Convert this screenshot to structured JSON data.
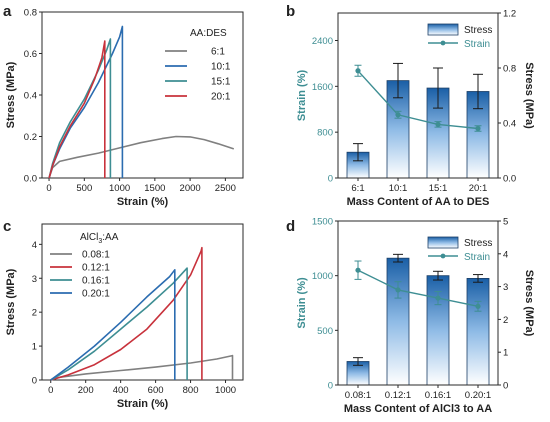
{
  "figure": {
    "panels": [
      {
        "id": "a",
        "letter": "a",
        "chart_data": {
          "type": "line",
          "xlabel": "Strain (%)",
          "ylabel": "Stress (MPa)",
          "xlim": [
            -100,
            2750
          ],
          "ylim": [
            0,
            0.8
          ],
          "xticks": [
            0,
            500,
            1000,
            1500,
            2000,
            2500
          ],
          "yticks": [
            0.0,
            0.2,
            0.4,
            0.6,
            0.8
          ],
          "legend": {
            "title": "AA:DES",
            "position": "right"
          },
          "series": [
            {
              "name": "6:1",
              "color": "#808080",
              "points": [
                [
                  0,
                  0
                ],
                [
                  50,
                  0.05
                ],
                [
                  150,
                  0.08
                ],
                [
                  400,
                  0.1
                ],
                [
                  700,
                  0.12
                ],
                [
                  1000,
                  0.145
                ],
                [
                  1300,
                  0.17
                ],
                [
                  1600,
                  0.19
                ],
                [
                  1800,
                  0.2
                ],
                [
                  2000,
                  0.198
                ],
                [
                  2200,
                  0.185
                ],
                [
                  2400,
                  0.165
                ],
                [
                  2620,
                  0.14
                ]
              ]
            },
            {
              "name": "10:1",
              "color": "#2b6cb0",
              "points": [
                [
                  0,
                  0
                ],
                [
                  50,
                  0.06
                ],
                [
                  150,
                  0.14
                ],
                [
                  300,
                  0.24
                ],
                [
                  500,
                  0.34
                ],
                [
                  700,
                  0.46
                ],
                [
                  900,
                  0.6
                ],
                [
                  1000,
                  0.68
                ],
                [
                  1040,
                  0.73
                ],
                [
                  1040,
                  0
                ]
              ]
            },
            {
              "name": "15:1",
              "color": "#3e8e93",
              "points": [
                [
                  0,
                  0
                ],
                [
                  50,
                  0.07
                ],
                [
                  150,
                  0.17
                ],
                [
                  300,
                  0.27
                ],
                [
                  500,
                  0.38
                ],
                [
                  700,
                  0.52
                ],
                [
                  820,
                  0.62
                ],
                [
                  870,
                  0.67
                ],
                [
                  870,
                  0
                ]
              ]
            },
            {
              "name": "20:1",
              "color": "#c8323c",
              "points": [
                [
                  0,
                  0
                ],
                [
                  50,
                  0.06
                ],
                [
                  150,
                  0.15
                ],
                [
                  300,
                  0.25
                ],
                [
                  500,
                  0.36
                ],
                [
                  650,
                  0.48
                ],
                [
                  750,
                  0.58
                ],
                [
                  790,
                  0.66
                ],
                [
                  790,
                  0
                ]
              ]
            }
          ]
        }
      },
      {
        "id": "b",
        "letter": "b",
        "chart_data": {
          "type": "bar",
          "categories": [
            "6:1",
            "10:1",
            "15:1",
            "20:1"
          ],
          "xlabel": "Mass Content of AA to DES",
          "ylabel": "Strain (%)",
          "y2label": "Stress (MPa)",
          "ylim": [
            0,
            2880
          ],
          "y2lim": [
            0,
            1.2
          ],
          "yticks": [
            0,
            800,
            1600,
            2400
          ],
          "y2ticks": [
            0.0,
            0.4,
            0.8,
            1.2
          ],
          "legend": {
            "position": "top-right"
          },
          "series": [
            {
              "name": "Stress",
              "kind": "bar",
              "axis": "left",
              "values": [
                450,
                1700,
                1570,
                1510
              ],
              "errors": [
                150,
                300,
                350,
                300
              ]
            },
            {
              "name": "Strain",
              "kind": "line",
              "axis": "right",
              "values": [
                0.78,
                0.46,
                0.39,
                0.36
              ],
              "errors": [
                0.04,
                0.025,
                0.02,
                0.02
              ]
            }
          ]
        }
      },
      {
        "id": "c",
        "letter": "c",
        "chart_data": {
          "type": "line",
          "xlabel": "Strain (%)",
          "ylabel": "Stress (MPa)",
          "xlim": [
            -50,
            1100
          ],
          "ylim": [
            0,
            4.6
          ],
          "xticks": [
            0,
            200,
            400,
            600,
            800,
            1000
          ],
          "yticks": [
            0,
            1,
            2,
            3,
            4
          ],
          "legend": {
            "title_main": "AlCl",
            "title_sub": "3",
            "title_tail": ":AA",
            "position": "top-left"
          },
          "series": [
            {
              "name": "0.08:1",
              "color": "#808080",
              "points": [
                [
                  0,
                  0
                ],
                [
                  50,
                  0.08
                ],
                [
                  200,
                  0.18
                ],
                [
                  400,
                  0.28
                ],
                [
                  600,
                  0.38
                ],
                [
                  800,
                  0.5
                ],
                [
                  950,
                  0.62
                ],
                [
                  1040,
                  0.72
                ],
                [
                  1040,
                  0
                ]
              ]
            },
            {
              "name": "0.12:1",
              "color": "#c8323c",
              "points": [
                [
                  0,
                  0
                ],
                [
                  100,
                  0.15
                ],
                [
                  250,
                  0.45
                ],
                [
                  400,
                  0.9
                ],
                [
                  550,
                  1.5
                ],
                [
                  700,
                  2.35
                ],
                [
                  800,
                  3.1
                ],
                [
                  860,
                  3.8
                ],
                [
                  865,
                  3.9
                ],
                [
                  865,
                  0
                ]
              ]
            },
            {
              "name": "0.16:1",
              "color": "#3e8e93",
              "points": [
                [
                  0,
                  0
                ],
                [
                  100,
                  0.3
                ],
                [
                  250,
                  0.85
                ],
                [
                  400,
                  1.5
                ],
                [
                  550,
                  2.15
                ],
                [
                  700,
                  2.85
                ],
                [
                  780,
                  3.3
                ],
                [
                  780,
                  0
                ]
              ]
            },
            {
              "name": "0.20:1",
              "color": "#2b6cb0",
              "points": [
                [
                  0,
                  0
                ],
                [
                  100,
                  0.38
                ],
                [
                  250,
                  1.0
                ],
                [
                  400,
                  1.7
                ],
                [
                  550,
                  2.45
                ],
                [
                  680,
                  3.05
                ],
                [
                  710,
                  3.25
                ],
                [
                  710,
                  0
                ]
              ]
            }
          ]
        }
      },
      {
        "id": "d",
        "letter": "d",
        "chart_data": {
          "type": "bar",
          "categories": [
            "0.08:1",
            "0.12:1",
            "0.16:1",
            "0.20:1"
          ],
          "xlabel": "Mass Content of AlCl3 to AA",
          "ylabel": "Strain (%)",
          "y2label": "Stress (MPa)",
          "ylim": [
            0,
            1500
          ],
          "y2lim": [
            0,
            5
          ],
          "yticks": [
            0,
            500,
            1000,
            1500
          ],
          "y2ticks": [
            0,
            1,
            2,
            3,
            4,
            5
          ],
          "legend": {
            "position": "top-right"
          },
          "series": [
            {
              "name": "Stress",
              "kind": "bar",
              "axis": "left",
              "values": [
                215,
                1160,
                1000,
                975
              ],
              "errors": [
                35,
                35,
                40,
                35
              ]
            },
            {
              "name": "Strain",
              "kind": "line",
              "axis": "right",
              "values": [
                3.5,
                2.9,
                2.65,
                2.4
              ],
              "errors": [
                0.28,
                0.25,
                0.2,
                0.15
              ]
            }
          ]
        }
      }
    ]
  }
}
